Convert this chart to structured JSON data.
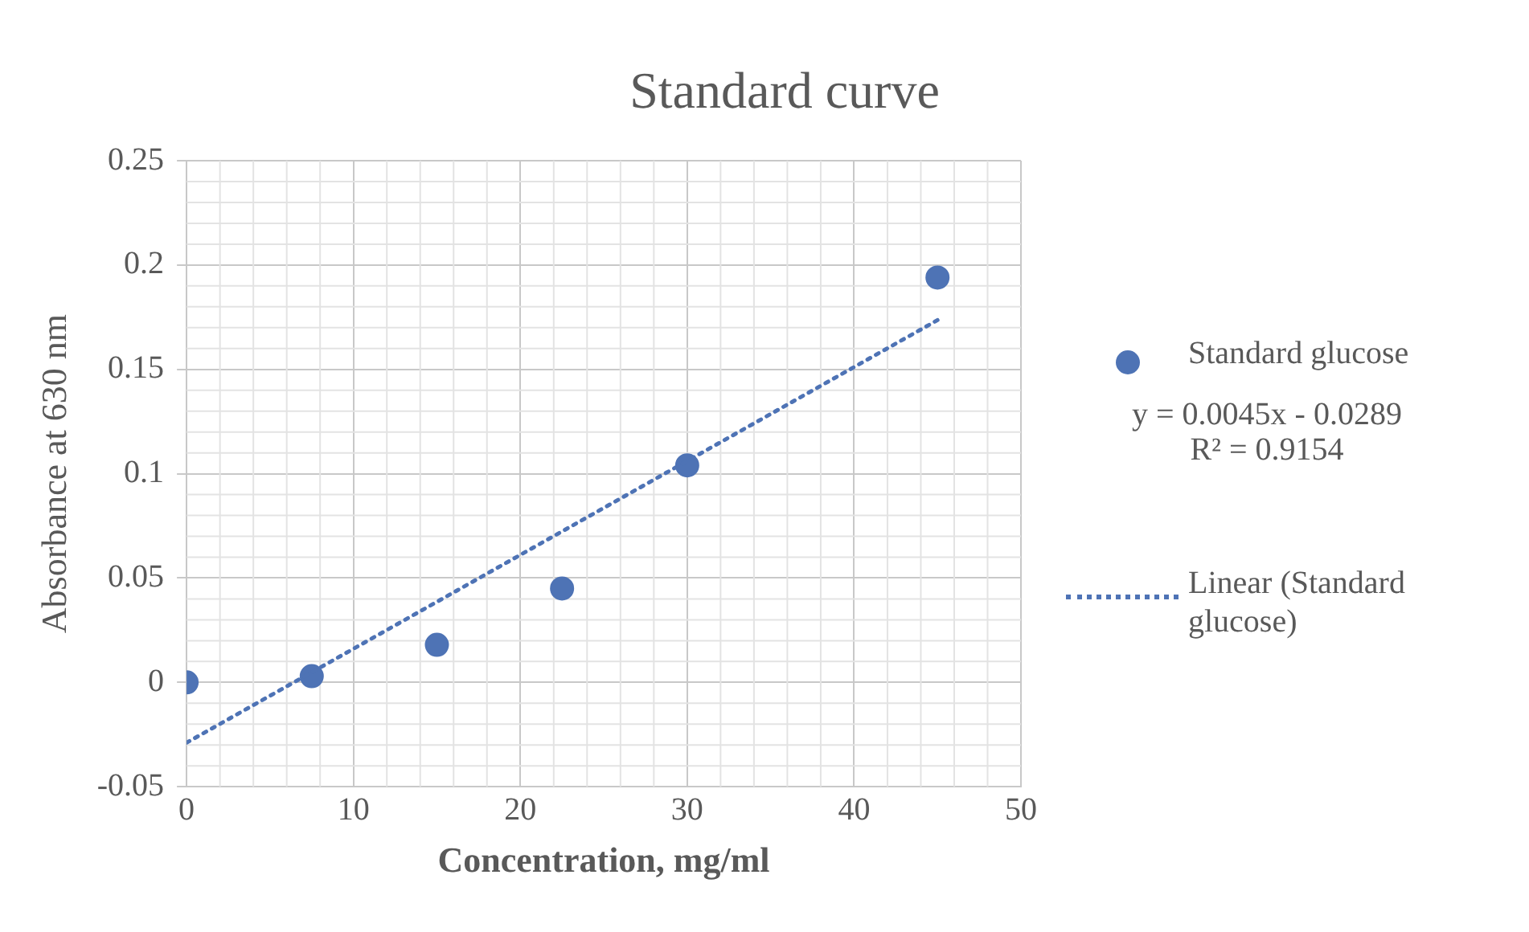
{
  "chart_data": {
    "type": "scatter",
    "title": "Standard curve",
    "xlabel": "Concentration, mg/ml",
    "ylabel": "Absorbance at 630 nm",
    "x": [
      0,
      7.5,
      15,
      22.5,
      30,
      45
    ],
    "series": [
      {
        "name": "Standard glucose",
        "type": "scatter",
        "color": "#4e73b5",
        "marker": "circle",
        "values": [
          0,
          0.003,
          0.018,
          0.045,
          0.104,
          0.194
        ]
      },
      {
        "name": "Linear (Standard glucose)",
        "type": "line",
        "color": "#4e73b5",
        "marker": "none",
        "line_style": "dotted",
        "x": [
          0,
          45
        ],
        "values": [
          -0.0289,
          0.1736
        ]
      }
    ],
    "annotations": [
      "y = 0.0045x - 0.0289",
      "R² = 0.9154"
    ],
    "xlim": [
      0,
      50
    ],
    "xticks": [
      0,
      10,
      20,
      30,
      40,
      50
    ],
    "ylim": [
      -0.05,
      0.25
    ],
    "yticks": [
      -0.05,
      0,
      0.05,
      0.1,
      0.15,
      0.2,
      0.25
    ],
    "grid": true,
    "legend": "right"
  }
}
